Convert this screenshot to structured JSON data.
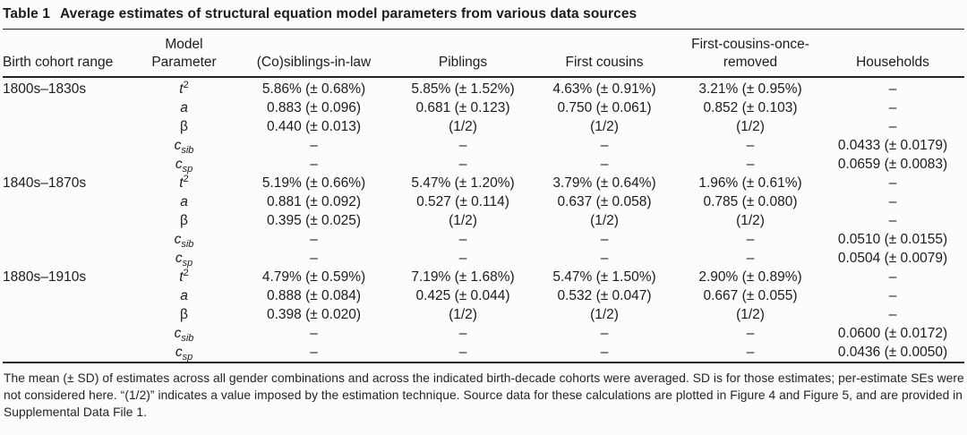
{
  "table": {
    "title_label": "Table 1",
    "title_text": "Average estimates of structural equation model parameters from various data sources",
    "columns": [
      "Birth cohort range",
      "Model\nParameter",
      "(Co)siblings-in-law",
      "Piblings",
      "First cousins",
      "First-cousins-once-\nremoved",
      "Households"
    ],
    "row_groups": [
      {
        "cohort": "1800s–1830s",
        "rows": [
          {
            "param": {
              "base": "t",
              "sup": "2",
              "sub": ""
            },
            "values": [
              "5.86% (± 0.68%)",
              "5.85% (± 1.52%)",
              "4.63% (± 0.91%)",
              "3.21% (± 0.95%)",
              "–"
            ]
          },
          {
            "param": {
              "base": "a",
              "sup": "",
              "sub": ""
            },
            "values": [
              "0.883 (± 0.096)",
              "0.681 (± 0.123)",
              "0.750 (± 0.061)",
              "0.852 (± 0.103)",
              "–"
            ]
          },
          {
            "param": {
              "base": "β",
              "sup": "",
              "sub": ""
            },
            "values": [
              "0.440 (± 0.013)",
              "(1/2)",
              "(1/2)",
              "(1/2)",
              "–"
            ]
          },
          {
            "param": {
              "base": "c",
              "sup": "",
              "sub": "sib"
            },
            "values": [
              "–",
              "–",
              "–",
              "–",
              "0.0433 (± 0.0179)"
            ]
          },
          {
            "param": {
              "base": "c",
              "sup": "",
              "sub": "sp"
            },
            "values": [
              "–",
              "–",
              "–",
              "–",
              "0.0659 (± 0.0083)"
            ]
          }
        ]
      },
      {
        "cohort": "1840s–1870s",
        "rows": [
          {
            "param": {
              "base": "t",
              "sup": "2",
              "sub": ""
            },
            "values": [
              "5.19% (± 0.66%)",
              "5.47% (± 1.20%)",
              "3.79% (± 0.64%)",
              "1.96% (± 0.61%)",
              "–"
            ]
          },
          {
            "param": {
              "base": "a",
              "sup": "",
              "sub": ""
            },
            "values": [
              "0.881 (± 0.092)",
              "0.527 (± 0.114)",
              "0.637 (± 0.058)",
              "0.785 (± 0.080)",
              "–"
            ]
          },
          {
            "param": {
              "base": "β",
              "sup": "",
              "sub": ""
            },
            "values": [
              "0.395 (± 0.025)",
              "(1/2)",
              "(1/2)",
              "(1/2)",
              "–"
            ]
          },
          {
            "param": {
              "base": "c",
              "sup": "",
              "sub": "sib"
            },
            "values": [
              "–",
              "–",
              "–",
              "–",
              "0.0510 (± 0.0155)"
            ]
          },
          {
            "param": {
              "base": "c",
              "sup": "",
              "sub": "sp"
            },
            "values": [
              "–",
              "–",
              "–",
              "–",
              "0.0504 (± 0.0079)"
            ]
          }
        ]
      },
      {
        "cohort": "1880s–1910s",
        "rows": [
          {
            "param": {
              "base": "t",
              "sup": "2",
              "sub": ""
            },
            "values": [
              "4.79% (± 0.59%)",
              "7.19% (± 1.68%)",
              "5.47% (± 1.50%)",
              "2.90% (± 0.89%)",
              "–"
            ]
          },
          {
            "param": {
              "base": "a",
              "sup": "",
              "sub": ""
            },
            "values": [
              "0.888 (± 0.084)",
              "0.425 (± 0.044)",
              "0.532 (± 0.047)",
              "0.667 (± 0.055)",
              "–"
            ]
          },
          {
            "param": {
              "base": "β",
              "sup": "",
              "sub": ""
            },
            "values": [
              "0.398 (± 0.020)",
              "(1/2)",
              "(1/2)",
              "(1/2)",
              "–"
            ]
          },
          {
            "param": {
              "base": "c",
              "sup": "",
              "sub": "sib"
            },
            "values": [
              "–",
              "–",
              "–",
              "–",
              "0.0600 (± 0.0172)"
            ]
          },
          {
            "param": {
              "base": "c",
              "sup": "",
              "sub": "sp"
            },
            "values": [
              "–",
              "–",
              "–",
              "–",
              "0.0436 (± 0.0050)"
            ]
          }
        ]
      }
    ],
    "footnote": "The mean (± SD) of estimates across all gender combinations and across the indicated birth-decade cohorts were averaged. SD is for those estimates; per-estimate SEs were not considered here. “(1/2)” indicates a value imposed by the estimation technique. Source data for these calculations are plotted in Figure 4 and Figure 5, and are provided in Supplemental Data File 1."
  }
}
